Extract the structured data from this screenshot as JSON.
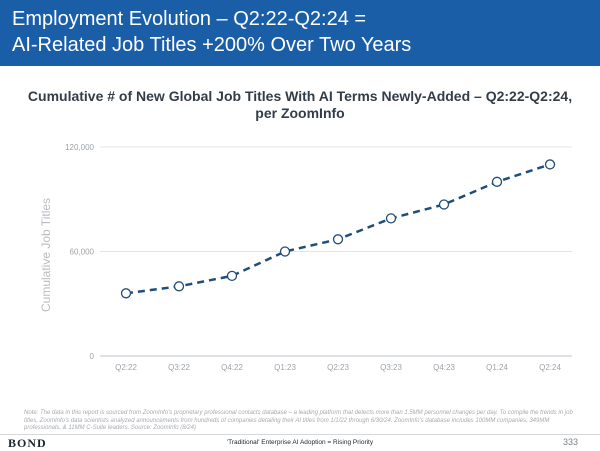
{
  "header": {
    "line1": "Employment Evolution – Q2:22-Q2:24 =",
    "line2": "AI-Related Job Titles +200% Over Two Years"
  },
  "chart_data": {
    "type": "line",
    "title_line1": "Cumulative # of New Global Job Titles With AI Terms Newly-Added – Q2:22-Q2:24,",
    "title_line2": "per ZoomInfo",
    "xlabel": "",
    "ylabel": "Cumulative Job Titles",
    "categories": [
      "Q2:22",
      "Q3:22",
      "Q4:22",
      "Q1:23",
      "Q2:23",
      "Q3:23",
      "Q4:23",
      "Q1:24",
      "Q2:24"
    ],
    "series": [
      {
        "values": [
          36000,
          40000,
          46000,
          60000,
          67000,
          79000,
          87000,
          100000,
          110000
        ]
      }
    ],
    "ylim": [
      0,
      120000
    ],
    "yticks": [
      0,
      60000,
      120000
    ],
    "ytick_labels": [
      "0",
      "60,000",
      "120,000"
    ],
    "line_style": "dashed",
    "marker": "open-circle",
    "grid": true,
    "legend": "none",
    "colors": {
      "line": "#1f4e79",
      "marker_fill": "#ffffff",
      "grid": "#e2e4e7"
    }
  },
  "note": "Note: The data in this report is sourced from ZoomInfo's proprietary professional contacts database – a leading platform that detects more than 1.5MM personnel changes per day. To compile the trends in job titles, ZoomInfo's data scientists analyzed announcements from hundreds of companies detailing their AI titles from 1/1/22 through 6/30/24. ZoomInfo's database includes 100MM companies, 349MM professionals, & 11MM C-Suite leaders. Source: ZoomInfo (8/24)",
  "footer": {
    "logo": "BOND",
    "text": "'Traditional' Enterprise AI Adoption = Rising Priority",
    "page_number": "333"
  },
  "colors": {
    "header_bg": "#1b5ea8",
    "header_text": "#ffffff",
    "title_text": "#333d47"
  }
}
